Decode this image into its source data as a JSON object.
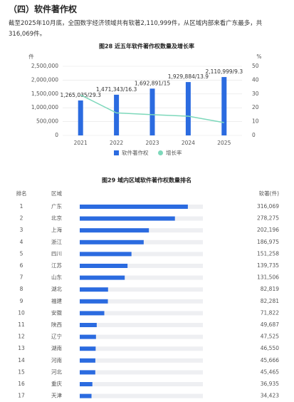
{
  "heading": "（四）软件著作权",
  "paragraph": "截至2025年10月底，全国数字经济领域共有软著2,110,999件，从区域内部来看广东最多，共316,069件。",
  "chart_data": [
    {
      "type": "bar-line",
      "title": "图28 近五年软件著作权数量及增长率",
      "y_unit": "件",
      "y2_unit": "%",
      "categories": [
        "2021",
        "2022",
        "2023",
        "2024",
        "2025"
      ],
      "series": [
        {
          "name": "软件著作权",
          "type": "bar",
          "color": "#2b6be0",
          "values": [
            1265035,
            1471343,
            1692891,
            1929884,
            2110999
          ],
          "value_labels": [
            "1,265,035/29.3",
            "1,471,343/16.3",
            "1,692,891/15",
            "1,929,884/13.9",
            "2,110,999/9.3"
          ]
        },
        {
          "name": "增长率",
          "type": "line",
          "axis": "y2",
          "color": "#7dd8bb",
          "values": [
            29.3,
            16.3,
            15,
            13.9,
            9.3
          ]
        }
      ],
      "ylim": [
        0,
        2500000
      ],
      "yticks": [
        0,
        {
          "value": 500000,
          "label": "500,000"
        },
        {
          "value": 1000000,
          "label": "1,000,000"
        },
        {
          "value": 1500000,
          "label": "1,500,000"
        },
        {
          "value": 2000000,
          "label": "2,000,000"
        },
        {
          "value": 2500000,
          "label": "2,500,000"
        }
      ],
      "y2lim": [
        0,
        50
      ],
      "y2ticks": [
        0,
        10,
        20,
        30,
        40,
        50
      ],
      "grid": true
    },
    {
      "type": "hbar",
      "title": "图29 域内区域软件著作权数量排名",
      "column_headers": [
        "排名",
        "区域",
        "软著(件)"
      ],
      "ranks": [
        1,
        2,
        3,
        4,
        5,
        6,
        7,
        8,
        9,
        10,
        11,
        12,
        13,
        14,
        15,
        16,
        17
      ],
      "categories": [
        "广东",
        "北京",
        "上海",
        "浙江",
        "四川",
        "江苏",
        "山东",
        "湖北",
        "福建",
        "安徽",
        "陕西",
        "辽宁",
        "湖南",
        "河南",
        "河北",
        "重庆",
        "天津"
      ],
      "values": [
        316069,
        278275,
        202196,
        186975,
        151258,
        139735,
        131506,
        82819,
        82281,
        71822,
        49687,
        47525,
        46550,
        45666,
        45465,
        36935,
        34423
      ],
      "value_labels": [
        "316,069",
        "278,275",
        "202,196",
        "186,975",
        "151,258",
        "139,735",
        "131,506",
        "82,819",
        "82,281",
        "71,822",
        "49,687",
        "47,525",
        "46,550",
        "45,666",
        "45,465",
        "36,935",
        "34,423"
      ],
      "xlim": [
        0,
        360000
      ],
      "color": "#2b6be0",
      "track_color": "#eeeff2"
    }
  ]
}
